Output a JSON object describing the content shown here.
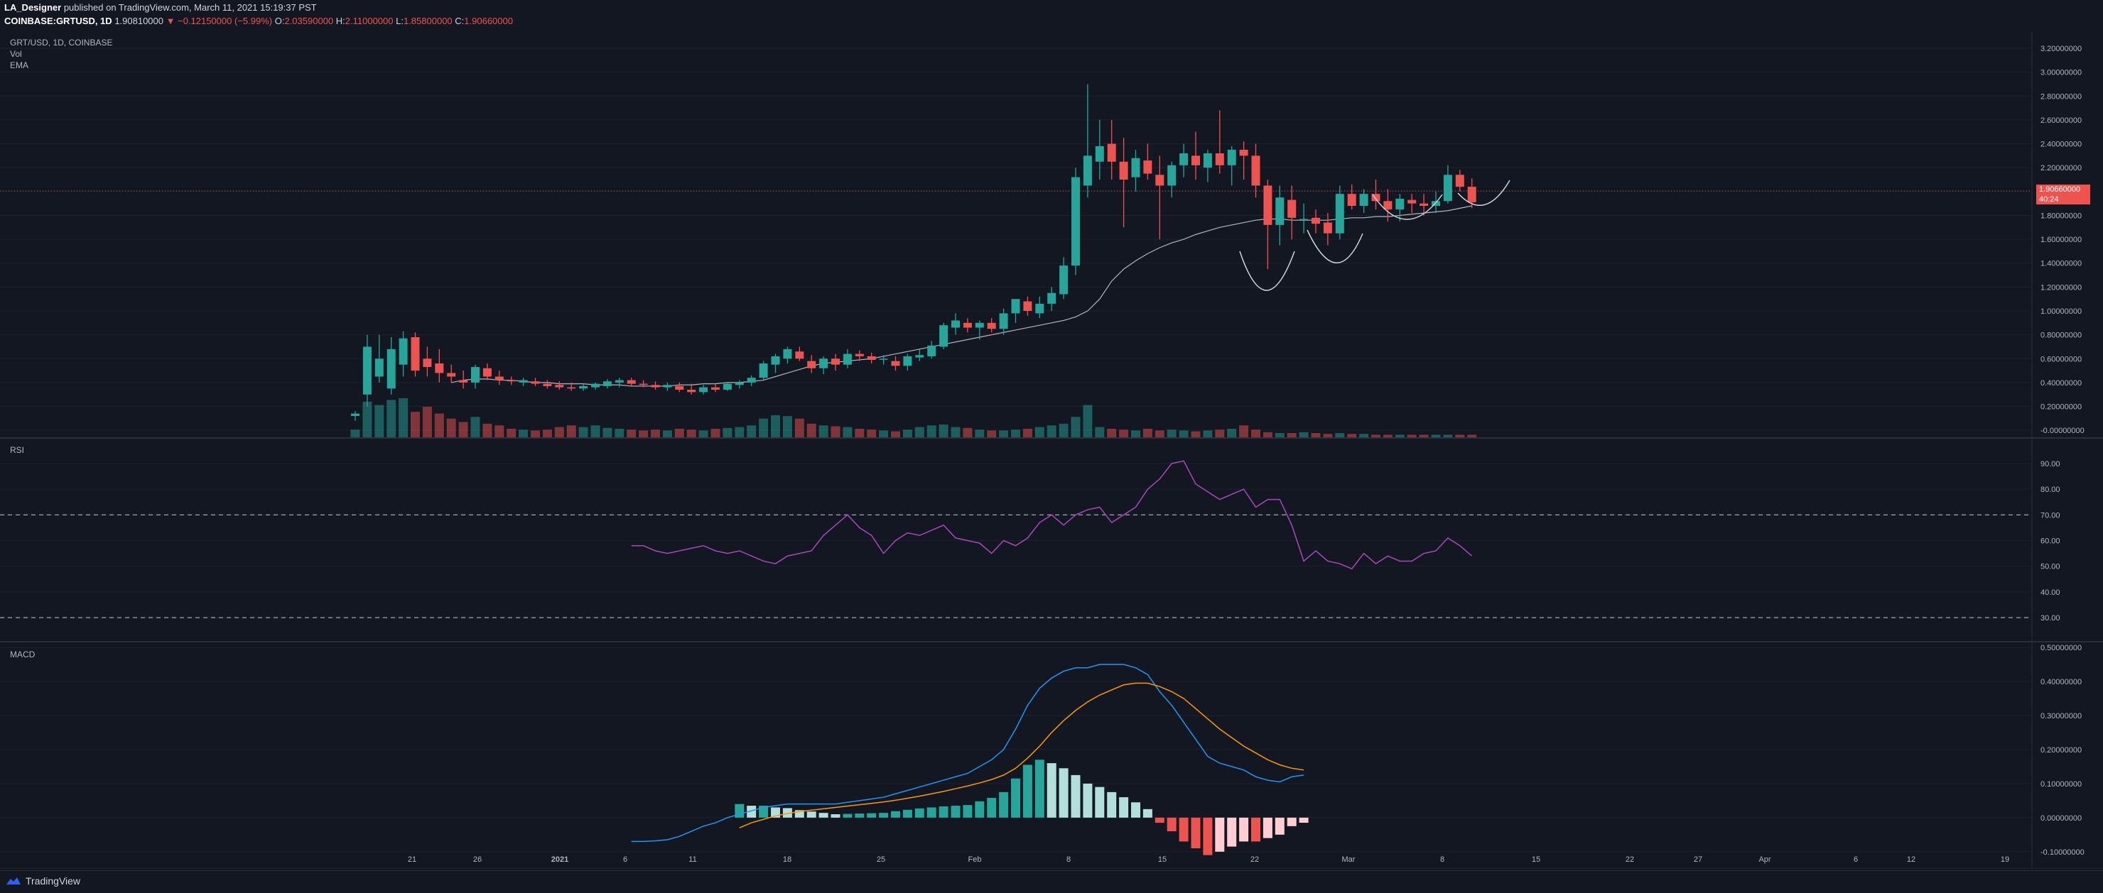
{
  "header": {
    "author": "LA_Designer",
    "published_text": "published on TradingView.com, March 11, 2021 15:19:37 PST",
    "symbol_line": "COINBASE:GRTUSD, 1D",
    "last_price": "1.90810000",
    "change": "▼ −0.12150000 (−5.99%)",
    "open_label": "O:",
    "open": "2.03590000",
    "high_label": "H:",
    "high": "2.11000000",
    "low_label": "L:",
    "low": "1.85800000",
    "close_label": "C:",
    "close": "1.90660000"
  },
  "legend": {
    "pair": "GRT/USD, 1D, COINBASE",
    "vol": "Vol",
    "ema": "EMA",
    "rsi": "RSI",
    "macd": "MACD"
  },
  "price_tag": {
    "price": "1.90660000",
    "countdown": "40:24"
  },
  "footer": {
    "brand": "TradingView"
  },
  "colors": {
    "bg": "#131722",
    "up": "#26a69a",
    "down": "#ef5350",
    "grid": "#1e222d",
    "rsi": "#ab47bc",
    "macd": "#2196f3",
    "signal": "#ff9800",
    "hist_up_strong": "#26a69a",
    "hist_up_weak": "#b2dfdb",
    "hist_down_strong": "#ef5350",
    "hist_down_weak": "#ffcdd2"
  },
  "chart_data": [
    {
      "type": "candlestick",
      "title": "GRT/USD, 1D, COINBASE",
      "ylim": [
        -0.1,
        3.2
      ],
      "y_ticks": [
        "3.20000000",
        "3.00000000",
        "2.80000000",
        "2.60000000",
        "2.40000000",
        "2.20000000",
        "2.00000000",
        "1.80000000",
        "1.60000000",
        "1.40000000",
        "1.20000000",
        "1.00000000",
        "0.80000000",
        "0.60000000",
        "0.40000000",
        "0.20000000",
        "-0.00000000"
      ],
      "x_ticks": [
        "21",
        "26",
        "2021",
        "6",
        "11",
        "18",
        "25",
        "Feb",
        "8",
        "15",
        "22",
        "Mar",
        "8",
        "15",
        "22",
        "27",
        "Apr",
        "6",
        "12",
        "19"
      ],
      "candles": [
        {
          "o": 0.12,
          "h": 0.16,
          "l": 0.08,
          "c": 0.14
        },
        {
          "o": 0.3,
          "h": 0.8,
          "l": 0.2,
          "c": 0.7
        },
        {
          "o": 0.45,
          "h": 0.8,
          "l": 0.4,
          "c": 0.6
        },
        {
          "o": 0.35,
          "h": 0.78,
          "l": 0.3,
          "c": 0.68
        },
        {
          "o": 0.55,
          "h": 0.83,
          "l": 0.45,
          "c": 0.77
        },
        {
          "o": 0.78,
          "h": 0.82,
          "l": 0.45,
          "c": 0.5
        },
        {
          "o": 0.6,
          "h": 0.7,
          "l": 0.45,
          "c": 0.53
        },
        {
          "o": 0.56,
          "h": 0.68,
          "l": 0.4,
          "c": 0.48
        },
        {
          "o": 0.48,
          "h": 0.55,
          "l": 0.4,
          "c": 0.45
        },
        {
          "o": 0.42,
          "h": 0.5,
          "l": 0.35,
          "c": 0.4
        },
        {
          "o": 0.4,
          "h": 0.55,
          "l": 0.35,
          "c": 0.53
        },
        {
          "o": 0.52,
          "h": 0.56,
          "l": 0.42,
          "c": 0.45
        },
        {
          "o": 0.45,
          "h": 0.5,
          "l": 0.38,
          "c": 0.42
        },
        {
          "o": 0.42,
          "h": 0.45,
          "l": 0.38,
          "c": 0.41
        },
        {
          "o": 0.4,
          "h": 0.44,
          "l": 0.37,
          "c": 0.42
        },
        {
          "o": 0.41,
          "h": 0.44,
          "l": 0.37,
          "c": 0.39
        },
        {
          "o": 0.39,
          "h": 0.42,
          "l": 0.35,
          "c": 0.37
        },
        {
          "o": 0.38,
          "h": 0.41,
          "l": 0.34,
          "c": 0.36
        },
        {
          "o": 0.36,
          "h": 0.4,
          "l": 0.33,
          "c": 0.35
        },
        {
          "o": 0.35,
          "h": 0.39,
          "l": 0.33,
          "c": 0.37
        },
        {
          "o": 0.36,
          "h": 0.4,
          "l": 0.34,
          "c": 0.39
        },
        {
          "o": 0.37,
          "h": 0.43,
          "l": 0.35,
          "c": 0.41
        },
        {
          "o": 0.4,
          "h": 0.44,
          "l": 0.36,
          "c": 0.42
        },
        {
          "o": 0.42,
          "h": 0.44,
          "l": 0.37,
          "c": 0.39
        },
        {
          "o": 0.39,
          "h": 0.42,
          "l": 0.36,
          "c": 0.38
        },
        {
          "o": 0.38,
          "h": 0.41,
          "l": 0.34,
          "c": 0.36
        },
        {
          "o": 0.36,
          "h": 0.4,
          "l": 0.33,
          "c": 0.38
        },
        {
          "o": 0.37,
          "h": 0.4,
          "l": 0.32,
          "c": 0.34
        },
        {
          "o": 0.34,
          "h": 0.39,
          "l": 0.3,
          "c": 0.32
        },
        {
          "o": 0.32,
          "h": 0.38,
          "l": 0.3,
          "c": 0.36
        },
        {
          "o": 0.36,
          "h": 0.39,
          "l": 0.32,
          "c": 0.34
        },
        {
          "o": 0.34,
          "h": 0.4,
          "l": 0.33,
          "c": 0.39
        },
        {
          "o": 0.38,
          "h": 0.42,
          "l": 0.35,
          "c": 0.4
        },
        {
          "o": 0.4,
          "h": 0.46,
          "l": 0.37,
          "c": 0.44
        },
        {
          "o": 0.44,
          "h": 0.58,
          "l": 0.42,
          "c": 0.56
        },
        {
          "o": 0.55,
          "h": 0.64,
          "l": 0.48,
          "c": 0.62
        },
        {
          "o": 0.6,
          "h": 0.7,
          "l": 0.56,
          "c": 0.68
        },
        {
          "o": 0.66,
          "h": 0.7,
          "l": 0.58,
          "c": 0.6
        },
        {
          "o": 0.58,
          "h": 0.63,
          "l": 0.48,
          "c": 0.52
        },
        {
          "o": 0.52,
          "h": 0.62,
          "l": 0.47,
          "c": 0.6
        },
        {
          "o": 0.6,
          "h": 0.64,
          "l": 0.5,
          "c": 0.55
        },
        {
          "o": 0.55,
          "h": 0.68,
          "l": 0.52,
          "c": 0.64
        },
        {
          "o": 0.64,
          "h": 0.67,
          "l": 0.58,
          "c": 0.62
        },
        {
          "o": 0.62,
          "h": 0.65,
          "l": 0.56,
          "c": 0.59
        },
        {
          "o": 0.6,
          "h": 0.63,
          "l": 0.55,
          "c": 0.6
        },
        {
          "o": 0.58,
          "h": 0.62,
          "l": 0.5,
          "c": 0.54
        },
        {
          "o": 0.54,
          "h": 0.64,
          "l": 0.5,
          "c": 0.62
        },
        {
          "o": 0.61,
          "h": 0.68,
          "l": 0.58,
          "c": 0.63
        },
        {
          "o": 0.62,
          "h": 0.75,
          "l": 0.6,
          "c": 0.71
        },
        {
          "o": 0.7,
          "h": 0.9,
          "l": 0.68,
          "c": 0.88
        },
        {
          "o": 0.86,
          "h": 0.98,
          "l": 0.8,
          "c": 0.92
        },
        {
          "o": 0.9,
          "h": 0.94,
          "l": 0.82,
          "c": 0.86
        },
        {
          "o": 0.86,
          "h": 0.92,
          "l": 0.76,
          "c": 0.9
        },
        {
          "o": 0.9,
          "h": 0.94,
          "l": 0.82,
          "c": 0.85
        },
        {
          "o": 0.85,
          "h": 1.02,
          "l": 0.8,
          "c": 0.98
        },
        {
          "o": 0.98,
          "h": 1.08,
          "l": 0.9,
          "c": 1.1
        },
        {
          "o": 1.08,
          "h": 1.12,
          "l": 0.96,
          "c": 1.0
        },
        {
          "o": 0.98,
          "h": 1.12,
          "l": 0.94,
          "c": 1.06
        },
        {
          "o": 1.06,
          "h": 1.2,
          "l": 1.0,
          "c": 1.15
        },
        {
          "o": 1.14,
          "h": 1.45,
          "l": 1.1,
          "c": 1.38
        },
        {
          "o": 1.38,
          "h": 2.2,
          "l": 1.3,
          "c": 2.12
        },
        {
          "o": 2.05,
          "h": 2.9,
          "l": 1.95,
          "c": 2.3
        },
        {
          "o": 2.25,
          "h": 2.6,
          "l": 2.1,
          "c": 2.38
        },
        {
          "o": 2.4,
          "h": 2.6,
          "l": 2.1,
          "c": 2.25
        },
        {
          "o": 2.25,
          "h": 2.45,
          "l": 1.7,
          "c": 2.1
        },
        {
          "o": 2.12,
          "h": 2.35,
          "l": 2.0,
          "c": 2.28
        },
        {
          "o": 2.26,
          "h": 2.4,
          "l": 2.1,
          "c": 2.15
        },
        {
          "o": 2.14,
          "h": 2.3,
          "l": 1.6,
          "c": 2.05
        },
        {
          "o": 2.05,
          "h": 2.25,
          "l": 1.95,
          "c": 2.22
        },
        {
          "o": 2.22,
          "h": 2.4,
          "l": 2.12,
          "c": 2.32
        },
        {
          "o": 2.3,
          "h": 2.5,
          "l": 2.1,
          "c": 2.22
        },
        {
          "o": 2.2,
          "h": 2.35,
          "l": 2.08,
          "c": 2.32
        },
        {
          "o": 2.32,
          "h": 2.68,
          "l": 2.15,
          "c": 2.22
        },
        {
          "o": 2.22,
          "h": 2.38,
          "l": 2.05,
          "c": 2.35
        },
        {
          "o": 2.35,
          "h": 2.42,
          "l": 2.1,
          "c": 2.3
        },
        {
          "o": 2.3,
          "h": 2.4,
          "l": 1.95,
          "c": 2.05
        },
        {
          "o": 2.05,
          "h": 2.1,
          "l": 1.35,
          "c": 1.72
        },
        {
          "o": 1.72,
          "h": 2.05,
          "l": 1.55,
          "c": 1.95
        },
        {
          "o": 1.93,
          "h": 2.05,
          "l": 1.6,
          "c": 1.78
        },
        {
          "o": 1.77,
          "h": 1.9,
          "l": 1.65,
          "c": 1.77
        },
        {
          "o": 1.78,
          "h": 1.85,
          "l": 1.65,
          "c": 1.73
        },
        {
          "o": 1.74,
          "h": 1.82,
          "l": 1.55,
          "c": 1.65
        },
        {
          "o": 1.65,
          "h": 2.05,
          "l": 1.6,
          "c": 1.98
        },
        {
          "o": 1.98,
          "h": 2.06,
          "l": 1.85,
          "c": 1.88
        },
        {
          "o": 1.88,
          "h": 2.02,
          "l": 1.82,
          "c": 1.98
        },
        {
          "o": 1.98,
          "h": 2.1,
          "l": 1.85,
          "c": 1.92
        },
        {
          "o": 1.92,
          "h": 2.02,
          "l": 1.75,
          "c": 1.85
        },
        {
          "o": 1.85,
          "h": 1.98,
          "l": 1.75,
          "c": 1.94
        },
        {
          "o": 1.93,
          "h": 1.98,
          "l": 1.82,
          "c": 1.9
        },
        {
          "o": 1.9,
          "h": 1.98,
          "l": 1.8,
          "c": 1.88
        },
        {
          "o": 1.88,
          "h": 2.0,
          "l": 1.82,
          "c": 1.92
        },
        {
          "o": 1.92,
          "h": 2.22,
          "l": 1.9,
          "c": 2.14
        },
        {
          "o": 2.14,
          "h": 2.18,
          "l": 2.0,
          "c": 2.04
        },
        {
          "o": 2.04,
          "h": 2.11,
          "l": 1.86,
          "c": 1.91
        }
      ],
      "volume": [
        9,
        42,
        38,
        44,
        46,
        30,
        36,
        28,
        22,
        18,
        24,
        16,
        14,
        10,
        9,
        8,
        9,
        12,
        14,
        12,
        14,
        11,
        10,
        9,
        8,
        9,
        8,
        10,
        9,
        8,
        10,
        11,
        12,
        14,
        22,
        26,
        25,
        22,
        16,
        14,
        13,
        12,
        10,
        9,
        8,
        7,
        9,
        12,
        14,
        15,
        12,
        11,
        9,
        8,
        8,
        9,
        10,
        12,
        14,
        16,
        24,
        38,
        12,
        10,
        9,
        8,
        10,
        8,
        9,
        8,
        7,
        8,
        9,
        10,
        14,
        9,
        6,
        5,
        5,
        6,
        5,
        4,
        5,
        4,
        4,
        3,
        3,
        3,
        3,
        3,
        3,
        3,
        3,
        3
      ]
    },
    {
      "type": "line",
      "title": "EMA",
      "values": [
        0.4,
        0.42,
        0.43,
        0.43,
        0.42,
        0.42,
        0.41,
        0.4,
        0.4,
        0.39,
        0.39,
        0.39,
        0.38,
        0.38,
        0.38,
        0.37,
        0.37,
        0.37,
        0.37,
        0.38,
        0.38,
        0.39,
        0.39,
        0.4,
        0.4,
        0.41,
        0.42,
        0.45,
        0.48,
        0.51,
        0.54,
        0.56,
        0.57,
        0.58,
        0.59,
        0.6,
        0.62,
        0.64,
        0.66,
        0.68,
        0.7,
        0.72,
        0.74,
        0.76,
        0.78,
        0.8,
        0.82,
        0.84,
        0.86,
        0.88,
        0.9,
        0.92,
        0.95,
        1.0,
        1.1,
        1.25,
        1.35,
        1.42,
        1.48,
        1.53,
        1.57,
        1.6,
        1.64,
        1.67,
        1.7,
        1.72,
        1.74,
        1.76,
        1.77,
        1.77,
        1.76,
        1.76,
        1.76,
        1.76,
        1.77,
        1.78,
        1.78,
        1.79,
        1.79,
        1.8,
        1.81,
        1.82,
        1.83,
        1.84,
        1.86,
        1.88
      ]
    },
    {
      "type": "line",
      "title": "RSI",
      "ylim": [
        22,
        98
      ],
      "y_ticks": [
        "90.00",
        "80.00",
        "70.00",
        "60.00",
        "50.00",
        "40.00",
        "30.00"
      ],
      "bands": [
        70,
        30
      ],
      "values": [
        58,
        58,
        56,
        55,
        56,
        57,
        58,
        56,
        55,
        56,
        54,
        52,
        51,
        54,
        55,
        56,
        62,
        66,
        70,
        65,
        62,
        55,
        60,
        63,
        62,
        64,
        66,
        61,
        60,
        59,
        55,
        60,
        58,
        61,
        67,
        70,
        66,
        70,
        72,
        73,
        67,
        70,
        73,
        80,
        84,
        90,
        91,
        82,
        79,
        76,
        78,
        80,
        73,
        76,
        76,
        66,
        52,
        56,
        52,
        51,
        49,
        55,
        51,
        54,
        52,
        52,
        55,
        56,
        61,
        58,
        54
      ],
      "start_index": 23
    },
    {
      "type": "macd",
      "title": "MACD",
      "ylim": [
        -0.14,
        0.5
      ],
      "y_ticks": [
        "0.50000000",
        "0.40000000",
        "0.30000000",
        "0.20000000",
        "0.10000000",
        "0.00000000",
        "-0.10000000"
      ],
      "macd": [
        -0.07,
        -0.07,
        -0.068,
        -0.065,
        -0.055,
        -0.04,
        -0.025,
        -0.015,
        0.0,
        0.01,
        0.02,
        0.03,
        0.035,
        0.04,
        0.04,
        0.04,
        0.04,
        0.04,
        0.045,
        0.05,
        0.055,
        0.06,
        0.07,
        0.08,
        0.09,
        0.1,
        0.11,
        0.12,
        0.13,
        0.15,
        0.17,
        0.2,
        0.26,
        0.33,
        0.38,
        0.41,
        0.43,
        0.44,
        0.44,
        0.45,
        0.45,
        0.45,
        0.44,
        0.42,
        0.37,
        0.33,
        0.28,
        0.23,
        0.18,
        0.16,
        0.15,
        0.14,
        0.12,
        0.11,
        0.105,
        0.12,
        0.125
      ],
      "signal": [
        null,
        null,
        null,
        null,
        null,
        null,
        null,
        null,
        null,
        -0.03,
        -0.015,
        -0.005,
        0.005,
        0.012,
        0.018,
        0.022,
        0.026,
        0.03,
        0.034,
        0.038,
        0.042,
        0.046,
        0.051,
        0.057,
        0.063,
        0.07,
        0.077,
        0.085,
        0.093,
        0.102,
        0.112,
        0.125,
        0.145,
        0.175,
        0.21,
        0.25,
        0.285,
        0.315,
        0.34,
        0.36,
        0.375,
        0.39,
        0.395,
        0.395,
        0.385,
        0.37,
        0.35,
        0.32,
        0.29,
        0.26,
        0.235,
        0.21,
        0.19,
        0.17,
        0.155,
        0.145,
        0.14
      ],
      "histogram": [
        null,
        null,
        null,
        null,
        null,
        null,
        null,
        null,
        null,
        0.04,
        0.035,
        0.035,
        0.03,
        0.028,
        0.022,
        0.018,
        0.014,
        0.01,
        0.011,
        0.012,
        0.013,
        0.014,
        0.019,
        0.023,
        0.027,
        0.03,
        0.033,
        0.035,
        0.037,
        0.048,
        0.058,
        0.075,
        0.115,
        0.155,
        0.17,
        0.16,
        0.145,
        0.125,
        0.1,
        0.09,
        0.075,
        0.06,
        0.045,
        0.025,
        -0.015,
        -0.04,
        -0.07,
        -0.09,
        -0.11,
        -0.1,
        -0.085,
        -0.07,
        -0.07,
        -0.06,
        -0.05,
        -0.025,
        -0.015
      ],
      "start_index": 23
    }
  ]
}
